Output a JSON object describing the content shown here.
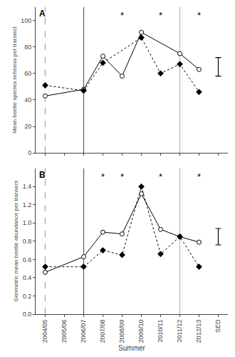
{
  "chart_data": [
    {
      "type": "line",
      "title": "A",
      "ylabel": "Mean beetle species richness per transect",
      "categories": [
        "2004/05",
        "2005/06",
        "2006/07",
        "2007/08",
        "2008/09",
        "2009/10",
        "2010/11",
        "2011/12",
        "2012/13",
        "SED"
      ],
      "tick_labels": "y",
      "series": [
        {
          "color": "#000000",
          "marker": "circle-open",
          "line_style": "solid",
          "values": [
            43,
            null,
            48,
            73,
            58,
            91,
            null,
            75,
            63,
            null
          ]
        },
        {
          "color": "#000000",
          "marker": "diamond",
          "line_style": "dotted",
          "values": [
            51,
            null,
            47,
            68,
            null,
            87,
            60,
            67,
            46,
            null
          ]
        }
      ],
      "vlines": [
        {
          "category": "2004/05",
          "color": "#aaaaaa",
          "line_style": "dashed"
        },
        {
          "category": "2006/07",
          "color": "#666666",
          "line_style": "solid"
        },
        {
          "category": "2011/12",
          "color": "#bbbbbb",
          "line_style": "solid"
        }
      ],
      "annotations": [
        {
          "category": "2008/09",
          "text": "*"
        },
        {
          "category": "2010/11",
          "text": "*"
        },
        {
          "category": "2012/13",
          "text": "*"
        }
      ],
      "error_bars": [
        {
          "category": "SED",
          "value": 65,
          "error": 7,
          "color": "#000000"
        }
      ],
      "ylim": [
        0,
        110
      ],
      "yticks": [
        0,
        20,
        40,
        60,
        80,
        100
      ],
      "grid": false
    },
    {
      "type": "line",
      "title": "B",
      "xlabel": "Summer",
      "ylabel": "Geometric mean beetle abundance per transect",
      "categories": [
        "2004/05",
        "2005/06",
        "2006/07",
        "2007/08",
        "2008/09",
        "2009/10",
        "2010/11",
        "2011/12",
        "2012/13",
        "SED"
      ],
      "series": [
        {
          "color": "#000000",
          "marker": "circle-open",
          "line_style": "solid",
          "values": [
            0.46,
            null,
            0.63,
            0.9,
            0.88,
            1.32,
            0.93,
            0.85,
            0.79,
            null
          ]
        },
        {
          "color": "#000000",
          "marker": "diamond",
          "line_style": "dotted",
          "values": [
            0.52,
            null,
            0.52,
            0.7,
            0.65,
            1.4,
            0.66,
            0.85,
            0.52,
            null
          ]
        }
      ],
      "vlines": [
        {
          "category": "2004/05",
          "color": "#aaaaaa",
          "line_style": "dashed"
        },
        {
          "category": "2006/07",
          "color": "#666666",
          "line_style": "solid"
        },
        {
          "category": "2011/12",
          "color": "#bbbbbb",
          "line_style": "solid"
        }
      ],
      "annotations": [
        {
          "category": "2007/08",
          "text": "*"
        },
        {
          "category": "2008/09",
          "text": "*"
        },
        {
          "category": "2010/11",
          "text": "*"
        },
        {
          "category": "2012/13",
          "text": "*"
        }
      ],
      "error_bars": [
        {
          "category": "SED",
          "value": 0.85,
          "error": 0.09,
          "color": "#000000"
        }
      ],
      "ylim": [
        0,
        1.6
      ],
      "yticks": [
        {
          "value": 0,
          "label": "0.0"
        },
        0.2,
        0.4,
        0.6,
        0.8,
        {
          "value": 1,
          "label": "1.0"
        },
        1.2,
        1.4
      ],
      "grid": false
    }
  ]
}
